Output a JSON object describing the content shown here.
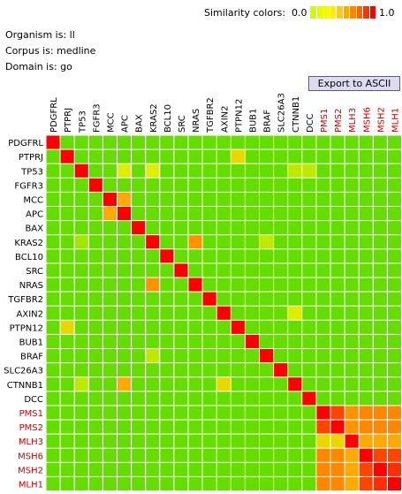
{
  "legend": {
    "title": "Similarity colors:",
    "min_label": "0.0",
    "max_label": "1.0",
    "colors": [
      "#ccff00",
      "#ddff00",
      "#eeff00",
      "#ffee00",
      "#ffcc00",
      "#ffaa00",
      "#ff8800",
      "#ff6600",
      "#ff3300",
      "#ff0000"
    ]
  },
  "info": {
    "organism": "Organism is: ll",
    "corpus": "Corpus is: medline",
    "domain": "Domain is: go"
  },
  "export_label": "Export to ASCII",
  "chart_data": {
    "type": "heatmap",
    "genes": [
      "PDGFRL",
      "PTPRJ",
      "TP53",
      "FGFR3",
      "MCC",
      "APC",
      "BAX",
      "KRAS2",
      "BCL10",
      "SRC",
      "NRAS",
      "TGFBR2",
      "AXIN2",
      "PTPN12",
      "BUB1",
      "BRAF",
      "SLC26A3",
      "CTNNB1",
      "DCC",
      "PMS1",
      "PMS2",
      "MLH3",
      "MSH6",
      "MSH2",
      "MLH1"
    ],
    "highlighted_genes": [
      "PMS1",
      "PMS2",
      "MLH3",
      "MSH6",
      "MSH2",
      "MLH1"
    ],
    "colors": {
      "diagonal": "#ff0000",
      "default": "#66dd00",
      "base_text": "#000000",
      "highlight_text": "#cc0000"
    },
    "cells": [
      {
        "r": 1,
        "c": 13,
        "v": 0.35
      },
      {
        "r": 2,
        "c": 5,
        "v": 0.3
      },
      {
        "r": 2,
        "c": 7,
        "v": 0.3
      },
      {
        "r": 2,
        "c": 17,
        "v": 0.25
      },
      {
        "r": 2,
        "c": 18,
        "v": 0.25
      },
      {
        "r": 4,
        "c": 5,
        "v": 0.45
      },
      {
        "r": 5,
        "c": 4,
        "v": 0.45
      },
      {
        "r": 7,
        "c": 10,
        "v": 0.55
      },
      {
        "r": 7,
        "c": 15,
        "v": 0.25
      },
      {
        "r": 7,
        "c": 2,
        "v": 0.2
      },
      {
        "r": 10,
        "c": 7,
        "v": 0.55
      },
      {
        "r": 13,
        "c": 1,
        "v": 0.35
      },
      {
        "r": 15,
        "c": 7,
        "v": 0.25
      },
      {
        "r": 17,
        "c": 2,
        "v": 0.25
      },
      {
        "r": 17,
        "c": 5,
        "v": 0.45
      },
      {
        "r": 17,
        "c": 12,
        "v": 0.35
      },
      {
        "r": 12,
        "c": 17,
        "v": 0.3
      },
      {
        "r": 19,
        "c": 20,
        "v": 0.85
      },
      {
        "r": 19,
        "c": 21,
        "v": 0.55
      },
      {
        "r": 19,
        "c": 22,
        "v": 0.6
      },
      {
        "r": 19,
        "c": 23,
        "v": 0.6
      },
      {
        "r": 19,
        "c": 24,
        "v": 0.6
      },
      {
        "r": 20,
        "c": 19,
        "v": 0.85
      },
      {
        "r": 20,
        "c": 21,
        "v": 0.55
      },
      {
        "r": 20,
        "c": 22,
        "v": 0.6
      },
      {
        "r": 20,
        "c": 23,
        "v": 0.6
      },
      {
        "r": 20,
        "c": 24,
        "v": 0.6
      },
      {
        "r": 21,
        "c": 19,
        "v": 0.35
      },
      {
        "r": 21,
        "c": 20,
        "v": 0.35
      },
      {
        "r": 21,
        "c": 22,
        "v": 0.45
      },
      {
        "r": 21,
        "c": 23,
        "v": 0.45
      },
      {
        "r": 21,
        "c": 24,
        "v": 0.45
      },
      {
        "r": 22,
        "c": 19,
        "v": 0.6
      },
      {
        "r": 22,
        "c": 20,
        "v": 0.6
      },
      {
        "r": 22,
        "c": 21,
        "v": 0.45
      },
      {
        "r": 22,
        "c": 23,
        "v": 0.85
      },
      {
        "r": 22,
        "c": 24,
        "v": 0.85
      },
      {
        "r": 23,
        "c": 19,
        "v": 0.6
      },
      {
        "r": 23,
        "c": 20,
        "v": 0.6
      },
      {
        "r": 23,
        "c": 21,
        "v": 0.45
      },
      {
        "r": 23,
        "c": 22,
        "v": 0.85
      },
      {
        "r": 23,
        "c": 24,
        "v": 0.9
      },
      {
        "r": 24,
        "c": 19,
        "v": 0.6
      },
      {
        "r": 24,
        "c": 20,
        "v": 0.6
      },
      {
        "r": 24,
        "c": 21,
        "v": 0.45
      },
      {
        "r": 24,
        "c": 22,
        "v": 0.85
      },
      {
        "r": 24,
        "c": 23,
        "v": 0.9
      }
    ]
  }
}
